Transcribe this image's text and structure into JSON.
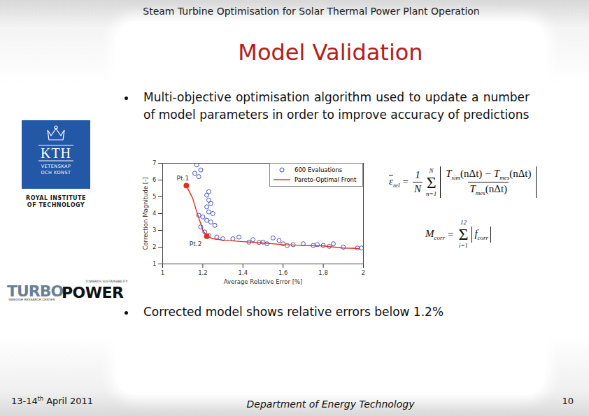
{
  "header": "Steam Turbine Optimisation for Solar Thermal Power Plant Operation",
  "title": "Model Validation",
  "bullets": [
    "Multi-objective optimisation algorithm used to update a number of model parameters in order to improve accuracy of predictions",
    "Corrected model shows relative errors below 1.2%"
  ],
  "logos": {
    "kth": {
      "name": "KTH",
      "motto": [
        "VETENSKAP",
        "OCH KONST"
      ],
      "caption": [
        "ROYAL INSTITUTE",
        "OF TECHNOLOGY"
      ]
    },
    "turbopower": {
      "words": [
        "TURBO",
        "POWER"
      ],
      "tagline": [
        "TOWARDS SUSTAINABILITY",
        "SWEDISH RESEARCH CENTER"
      ]
    }
  },
  "formulas": [
    {
      "lhs": {
        "b": "ε",
        "s": "rel"
      },
      "op": "=",
      "coef": [
        "1",
        "N"
      ],
      "sum": {
        "symbol": "Σ",
        "from": "n=1",
        "to": "N"
      },
      "abs": {
        "num": [
          {
            "b": "T",
            "s": "sim",
            "a": "(nΔt)"
          },
          "−",
          {
            "b": "T",
            "s": "mes",
            "a": "(nΔt)"
          }
        ],
        "den": [
          {
            "b": "T",
            "s": "mes",
            "a": "(nΔt)"
          }
        ]
      }
    },
    {
      "lhs": {
        "b": "M",
        "s": "corr"
      },
      "op": "=",
      "sum": {
        "symbol": "Σ",
        "from": "i=1",
        "to": "12"
      },
      "abs": {
        "num": [
          {
            "b": "f",
            "s": "corr"
          }
        ]
      }
    }
  ],
  "footer": {
    "date": {
      "pre": "13-14",
      "sup": "th",
      "post": " April 2011"
    },
    "center": "Department of Energy Technology",
    "page": "10"
  },
  "chart_data": {
    "type": "scatter",
    "x_label": "Average Relative Error [%]",
    "y_label": "Correction Magnitude [-]",
    "xlim": [
      1,
      2
    ],
    "ylim": [
      1,
      7
    ],
    "xticks": [
      1,
      1.2,
      1.4,
      1.6,
      1.8,
      2
    ],
    "yticks": [
      1,
      2,
      3,
      4,
      5,
      6,
      7
    ],
    "grid": false,
    "legend": "top-right",
    "series": [
      {
        "name": "600 Evaluations",
        "type": "scatter",
        "color": "#3040c0",
        "marker": "circle",
        "x": [
          1.17,
          1.19,
          1.16,
          1.18,
          1.22,
          1.23,
          1.23,
          1.24,
          1.22,
          1.23,
          1.25,
          1.22,
          1.24,
          1.26,
          1.2,
          1.18,
          1.19,
          1.21,
          1.23,
          1.27,
          1.3,
          1.35,
          1.38,
          1.45,
          1.5,
          1.52,
          1.55,
          1.58,
          1.6,
          1.65,
          1.7,
          1.75,
          1.77,
          1.8,
          1.83,
          1.85,
          1.9,
          1.97,
          1.99,
          1.62,
          1.43,
          1.48
        ],
        "y": [
          6.9,
          6.6,
          6.4,
          6.2,
          5.1,
          5.3,
          4.8,
          4.6,
          4.4,
          4.1,
          4.0,
          3.6,
          3.5,
          3.3,
          3.8,
          3.9,
          3.2,
          2.9,
          2.7,
          2.6,
          2.5,
          2.5,
          2.6,
          2.45,
          2.3,
          2.2,
          2.55,
          2.4,
          2.2,
          2.15,
          2.2,
          2.1,
          2.15,
          2.1,
          2.05,
          2.2,
          2.0,
          1.95,
          1.95,
          2.1,
          2.3,
          2.28
        ]
      },
      {
        "name": "Pareto-Optimal Front",
        "type": "line",
        "color": "#e0301e",
        "line_style": "solid",
        "x": [
          1.118,
          1.15,
          1.17,
          1.19,
          1.2,
          1.22,
          1.25,
          1.3,
          1.4,
          1.5,
          1.6,
          1.7,
          1.8,
          1.9,
          1.98
        ],
        "y": [
          5.67,
          4.9,
          4.1,
          3.4,
          3.0,
          2.65,
          2.5,
          2.42,
          2.33,
          2.25,
          2.15,
          2.1,
          2.07,
          1.95,
          1.92
        ]
      }
    ],
    "annotations": [
      {
        "text": "Pt.1",
        "x": 1.118,
        "y": 5.67
      },
      {
        "text": "Pt.2",
        "x": 1.22,
        "y": 2.65
      }
    ]
  }
}
